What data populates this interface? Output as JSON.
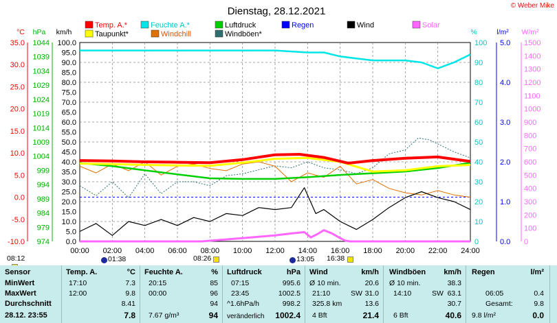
{
  "title": "Dienstag, 28.12.2021",
  "copyright": "© Weber Mike",
  "legend": [
    {
      "label": "Temp. A.*",
      "color": "#ff0000"
    },
    {
      "label": "Feuchte A.*",
      "color": "#00e5e5"
    },
    {
      "label": "Luftdruck",
      "color": "#00d000"
    },
    {
      "label": "Regen",
      "color": "#0000ff"
    },
    {
      "label": "Wind",
      "color": "#000000"
    },
    {
      "label": "Solar",
      "color": "#ff66ff"
    },
    {
      "label": "Taupunkt*",
      "color": "#ffff00"
    },
    {
      "label": "Windchill",
      "color": "#e07000"
    },
    {
      "label": "Windböen*",
      "color": "#2f6f6f"
    }
  ],
  "axis_units": {
    "temp": "°C",
    "press": "hPa",
    "wind": "km/h",
    "hum": "%",
    "rain": "l/m²",
    "solar": "W/m²"
  },
  "chart_data": {
    "type": "line",
    "x_ticks": [
      "00:00",
      "02:00",
      "04:00",
      "06:00",
      "08:00",
      "10:00",
      "12:00",
      "14:00",
      "16:00",
      "18:00",
      "20:00",
      "22:00",
      "24:00"
    ],
    "axes": {
      "temp": {
        "ticks": [
          "35.0",
          "30.0",
          "25.0",
          "20.0",
          "15.0",
          "10.0",
          "5.0",
          "0.0",
          "-5.0",
          "-10.0"
        ],
        "range": [
          -10,
          35
        ]
      },
      "press": {
        "ticks": [
          "1044",
          "1039",
          "1034",
          "1029",
          "1024",
          "1019",
          "1014",
          "1009",
          "1004",
          "999",
          "994",
          "989",
          "984",
          "979",
          "974"
        ],
        "range": [
          974,
          1044
        ]
      },
      "wind": {
        "ticks": [
          "100.0",
          "95.0",
          "90.0",
          "85.0",
          "80.0",
          "75.0",
          "70.0",
          "65.0",
          "60.0",
          "55.0",
          "50.0",
          "45.0",
          "40.0",
          "35.0",
          "30.0",
          "25.0",
          "20.0",
          "15.0",
          "10.0",
          "5.0",
          "0.0"
        ],
        "range": [
          0,
          100
        ]
      },
      "hum": {
        "ticks": [
          "100",
          "90",
          "80",
          "70",
          "60",
          "50",
          "40",
          "30",
          "20",
          "10",
          "0"
        ],
        "range": [
          0,
          100
        ]
      },
      "rain": {
        "ticks": [
          "5.0",
          "4.0",
          "3.0",
          "2.0",
          "1.0",
          "0.0"
        ],
        "range": [
          0,
          5
        ]
      },
      "solar": {
        "ticks": [
          "1500",
          "1400",
          "1300",
          "1200",
          "1100",
          "1000",
          "900",
          "800",
          "700",
          "600",
          "500",
          "400",
          "300",
          "200",
          "100",
          "0"
        ],
        "range": [
          0,
          1500
        ]
      }
    },
    "series": [
      {
        "name": "Temp. A.*",
        "axis": "temp",
        "x": [
          0,
          2,
          4,
          6,
          8,
          10,
          12,
          13.5,
          15,
          16.5,
          18,
          20,
          22,
          24
        ],
        "values": [
          8.3,
          8.2,
          8.0,
          7.9,
          7.8,
          8.5,
          9.6,
          9.7,
          9.0,
          7.7,
          8.3,
          8.8,
          9.1,
          8.1
        ]
      },
      {
        "name": "Taupunkt*",
        "axis": "temp",
        "x": [
          0,
          2,
          4,
          6,
          8,
          10,
          12,
          14,
          16,
          18,
          20,
          22,
          24
        ],
        "values": [
          7.6,
          7.5,
          7.3,
          7.2,
          7.1,
          7.8,
          8.7,
          8.9,
          8.0,
          5.8,
          6.1,
          7.0,
          7.3
        ]
      },
      {
        "name": "Feuchte A.*",
        "axis": "hum",
        "x": [
          0,
          2,
          4,
          6,
          8,
          10,
          12,
          14,
          15,
          16,
          17,
          18,
          19,
          20,
          21,
          22,
          23,
          24
        ],
        "values": [
          96,
          96,
          96,
          96,
          96,
          96,
          96,
          95,
          95,
          93,
          92,
          91,
          91,
          91,
          90,
          87,
          90,
          94
        ]
      },
      {
        "name": "Luftdruck",
        "axis": "press",
        "x": [
          0,
          2,
          4,
          6,
          8,
          10,
          12,
          14,
          16,
          18,
          20,
          22,
          24
        ],
        "values": [
          1001.6,
          1000.5,
          999.0,
          997.6,
          996.2,
          996.0,
          996.0,
          996.6,
          997.4,
          998.0,
          998.6,
          999.8,
          1001.7
        ]
      },
      {
        "name": "Windchill",
        "axis": "temp",
        "x": [
          0,
          1,
          2,
          3,
          4,
          5,
          6,
          7,
          8,
          9,
          10,
          11,
          12,
          13,
          14,
          15,
          16,
          17,
          18,
          19,
          20,
          21,
          22,
          23,
          24
        ],
        "values": [
          7.0,
          5.5,
          7.5,
          6.0,
          8.0,
          5.0,
          7.0,
          7.5,
          6.5,
          6.0,
          7.5,
          8.0,
          7.0,
          3.5,
          5.5,
          4.5,
          7.0,
          3.0,
          4.0,
          2.0,
          1.0,
          0.5,
          1.5,
          0.5,
          0.0
        ]
      },
      {
        "name": "Wind",
        "axis": "wind",
        "x": [
          0,
          1,
          2,
          3,
          4,
          5,
          6,
          7,
          8,
          9,
          10,
          11,
          12,
          13,
          13.8,
          14.5,
          15,
          16,
          17,
          18,
          19,
          20,
          21,
          22,
          23,
          24
        ],
        "values": [
          5,
          9,
          3,
          10,
          8,
          11,
          8,
          12,
          10,
          14,
          13,
          17,
          16,
          17,
          27,
          14,
          16,
          10,
          6,
          11,
          17,
          22,
          25,
          22,
          20,
          16
        ]
      },
      {
        "name": "Windböen*",
        "axis": "wind",
        "x": [
          0,
          1,
          2,
          3,
          4,
          5,
          6,
          7,
          8,
          9,
          10,
          11,
          12,
          13,
          14,
          15,
          16,
          17,
          18,
          19,
          20,
          20.8,
          21.5,
          22,
          23,
          24
        ],
        "values": [
          28,
          23,
          30,
          22,
          34,
          24,
          30,
          30,
          28,
          33,
          34,
          36,
          38,
          37,
          40,
          37,
          36,
          34,
          37,
          44,
          46,
          52,
          51,
          49,
          45,
          42
        ]
      },
      {
        "name": "Solar",
        "axis": "solar",
        "x": [
          0,
          7.5,
          8,
          9,
          10,
          11,
          12,
          13,
          13.8,
          14.2,
          14.6,
          15,
          15.5,
          16,
          16.3,
          16.6,
          24
        ],
        "values": [
          0,
          0,
          5,
          15,
          25,
          35,
          45,
          60,
          70,
          30,
          55,
          85,
          60,
          25,
          6,
          0,
          0
        ]
      }
    ],
    "rain_bars": [
      2.0,
      3.7,
      4.5,
      4.7,
      4.9,
      5.1,
      5.3,
      5.5,
      5.7,
      5.9,
      6.1,
      6.3,
      6.6,
      7.0,
      7.2,
      7.4,
      7.6,
      11.6,
      11.8,
      12.1,
      12.5,
      13.1,
      13.3,
      15.2,
      15.4,
      15.6,
      15.8,
      16.0,
      19.9,
      21.5,
      21.7,
      22.3,
      22.5
    ],
    "rain_bar_value": 0.2,
    "annotations": [
      {
        "t": "08:12",
        "kind": "sunrise"
      },
      {
        "t": "01:38",
        "kind": "moon"
      },
      {
        "t": "08:26",
        "kind": "sun"
      },
      {
        "t": "13:05",
        "kind": "moon"
      },
      {
        "t": "16:38",
        "kind": "sun"
      }
    ]
  },
  "table": {
    "sensor": {
      "header": "Sensor",
      "rows": [
        "MinWert",
        "MaxWert",
        "Durchschnitt",
        "28.12. 23:55"
      ]
    },
    "temp": {
      "header": "Temp. A.",
      "unit": "°C",
      "rows": [
        [
          "17:10",
          "7.3"
        ],
        [
          "12:00",
          "9.8"
        ],
        [
          "",
          "8.41"
        ],
        [
          "",
          "7.8"
        ]
      ]
    },
    "hum": {
      "header": "Feuchte A.",
      "unit": "%",
      "rows": [
        [
          "20:15",
          "85"
        ],
        [
          "00:00",
          "96"
        ],
        [
          "",
          "94"
        ],
        [
          "7.67 g/m³",
          "94"
        ]
      ]
    },
    "press": {
      "header": "Luftdruck",
      "unit": "hPa",
      "rows": [
        [
          "07:15",
          "995.6"
        ],
        [
          "23:45",
          "1002.5"
        ],
        [
          "^1.6hPa/h",
          "998.2"
        ],
        [
          "veränderlich",
          "1002.4"
        ]
      ]
    },
    "wind": {
      "header": "Wind",
      "unit": "km/h",
      "rows": [
        [
          "Ø 10 min.",
          "",
          "20.6"
        ],
        [
          "21:10",
          "SW",
          "31.0"
        ],
        [
          "325.8 km",
          "",
          "13.6"
        ],
        [
          "4 Bft",
          "",
          "21.4"
        ]
      ]
    },
    "gust": {
      "header": "Windböen",
      "unit": "km/h",
      "rows": [
        [
          "Ø 10 min.",
          "",
          "38.3"
        ],
        [
          "14:10",
          "SW",
          "63.1"
        ],
        [
          "",
          "",
          "30.7"
        ],
        [
          "6 Bft",
          "",
          "40.6"
        ]
      ]
    },
    "rain": {
      "header": "Regen",
      "unit": "l/m²",
      "rows": [
        [
          "",
          "",
          ""
        ],
        [
          "06:05",
          "",
          "0.4"
        ],
        [
          "Gesamt:",
          "",
          "9.8"
        ],
        [
          "9.8 l/m²",
          "",
          "0.0"
        ]
      ]
    }
  }
}
